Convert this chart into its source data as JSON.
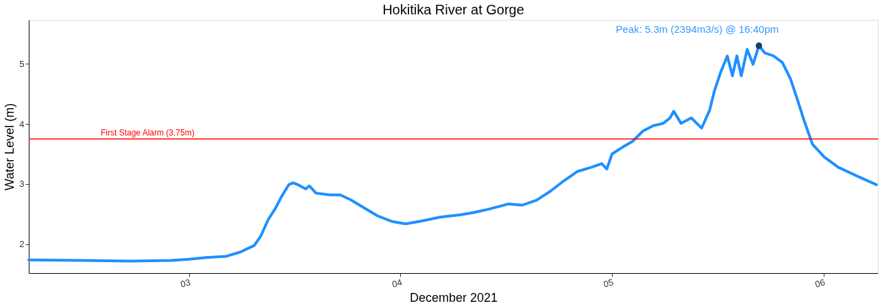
{
  "chart_data": {
    "type": "line",
    "title": "Hokitika River at Gorge",
    "xlabel": "December 2021",
    "ylabel": "Water Level (m)",
    "xlim": [
      "2021-12-02T05:50",
      "2021-12-06T06:10"
    ],
    "xticks": [
      {
        "value": "2021-12-03",
        "label": "03"
      },
      {
        "value": "2021-12-04",
        "label": "04"
      },
      {
        "value": "2021-12-05",
        "label": "05"
      },
      {
        "value": "2021-12-06",
        "label": "06"
      }
    ],
    "ylim": [
      1.52,
      5.73
    ],
    "yticks": [
      2,
      3,
      4,
      5
    ],
    "grid": false,
    "line_style": "solid",
    "series": [
      {
        "color": "#1e90ff",
        "marker": "none",
        "x": [
          "2021-12-02T05:50",
          "2021-12-02T12:00",
          "2021-12-02T17:20",
          "2021-12-02T22:00",
          "2021-12-03T00:00",
          "2021-12-03T02:00",
          "2021-12-03T04:15",
          "2021-12-03T05:50",
          "2021-12-03T07:25",
          "2021-12-03T08:10",
          "2021-12-03T09:00",
          "2021-12-03T09:45",
          "2021-12-03T10:30",
          "2021-12-03T11:20",
          "2021-12-03T11:50",
          "2021-12-03T12:30",
          "2021-12-03T13:15",
          "2021-12-03T13:40",
          "2021-12-03T14:25",
          "2021-12-03T16:00",
          "2021-12-03T17:10",
          "2021-12-03T18:20",
          "2021-12-03T19:55",
          "2021-12-03T21:25",
          "2021-12-03T23:00",
          "2021-12-04T00:35",
          "2021-12-04T02:10",
          "2021-12-04T04:30",
          "2021-12-04T06:50",
          "2021-12-04T08:25",
          "2021-12-04T09:55",
          "2021-12-04T11:30",
          "2021-12-04T12:15",
          "2021-12-04T13:50",
          "2021-12-04T15:25",
          "2021-12-04T17:00",
          "2021-12-04T18:30",
          "2021-12-04T20:05",
          "2021-12-04T21:40",
          "2021-12-04T22:50",
          "2021-12-04T23:25",
          "2021-12-05T00:00",
          "2021-12-05T01:10",
          "2021-12-05T02:20",
          "2021-12-05T02:45",
          "2021-12-05T03:30",
          "2021-12-05T04:40",
          "2021-12-05T05:50",
          "2021-12-05T06:35",
          "2021-12-05T07:00",
          "2021-12-05T07:50",
          "2021-12-05T09:00",
          "2021-12-05T10:10",
          "2021-12-05T11:05",
          "2021-12-05T11:35",
          "2021-12-05T12:20",
          "2021-12-05T13:05",
          "2021-12-05T13:40",
          "2021-12-05T14:10",
          "2021-12-05T14:40",
          "2021-12-05T15:20",
          "2021-12-05T16:00",
          "2021-12-05T16:40",
          "2021-12-05T17:20",
          "2021-12-05T18:20",
          "2021-12-05T19:20",
          "2021-12-05T20:15",
          "2021-12-05T21:00",
          "2021-12-05T21:50",
          "2021-12-05T22:45",
          "2021-12-06T00:05",
          "2021-12-06T01:40",
          "2021-12-06T04:00",
          "2021-12-06T06:00"
        ],
        "values": [
          1.74,
          1.73,
          1.72,
          1.73,
          1.75,
          1.78,
          1.8,
          1.87,
          1.98,
          2.14,
          2.41,
          2.58,
          2.79,
          2.99,
          3.02,
          2.98,
          2.92,
          2.97,
          2.85,
          2.82,
          2.82,
          2.74,
          2.6,
          2.47,
          2.38,
          2.34,
          2.38,
          2.45,
          2.49,
          2.53,
          2.58,
          2.64,
          2.67,
          2.65,
          2.73,
          2.88,
          3.05,
          3.21,
          3.28,
          3.34,
          3.25,
          3.5,
          3.61,
          3.71,
          3.77,
          3.88,
          3.97,
          4.01,
          4.1,
          4.21,
          4.01,
          4.1,
          3.93,
          4.23,
          4.53,
          4.86,
          5.13,
          4.8,
          5.13,
          4.8,
          5.24,
          4.99,
          5.3,
          5.18,
          5.13,
          5.02,
          4.75,
          4.42,
          4.04,
          3.66,
          3.45,
          3.28,
          3.12,
          2.99
        ]
      },
      {
        "type": "scatter",
        "color": "#173f6e",
        "marker": "circle",
        "x": [
          "2021-12-05T16:40"
        ],
        "values": [
          5.3
        ]
      }
    ],
    "ref_lines": [
      {
        "axis": "y",
        "value": 3.75,
        "label": "First Stage Alarm (3.75m)",
        "color": "#ff0000",
        "line_style": "solid"
      }
    ],
    "annotations": [
      {
        "text": "Peak: 5.3m (2394m3/s) @ 16:40pm",
        "x": "2021-12-05T16:40",
        "y": 5.3
      }
    ]
  }
}
